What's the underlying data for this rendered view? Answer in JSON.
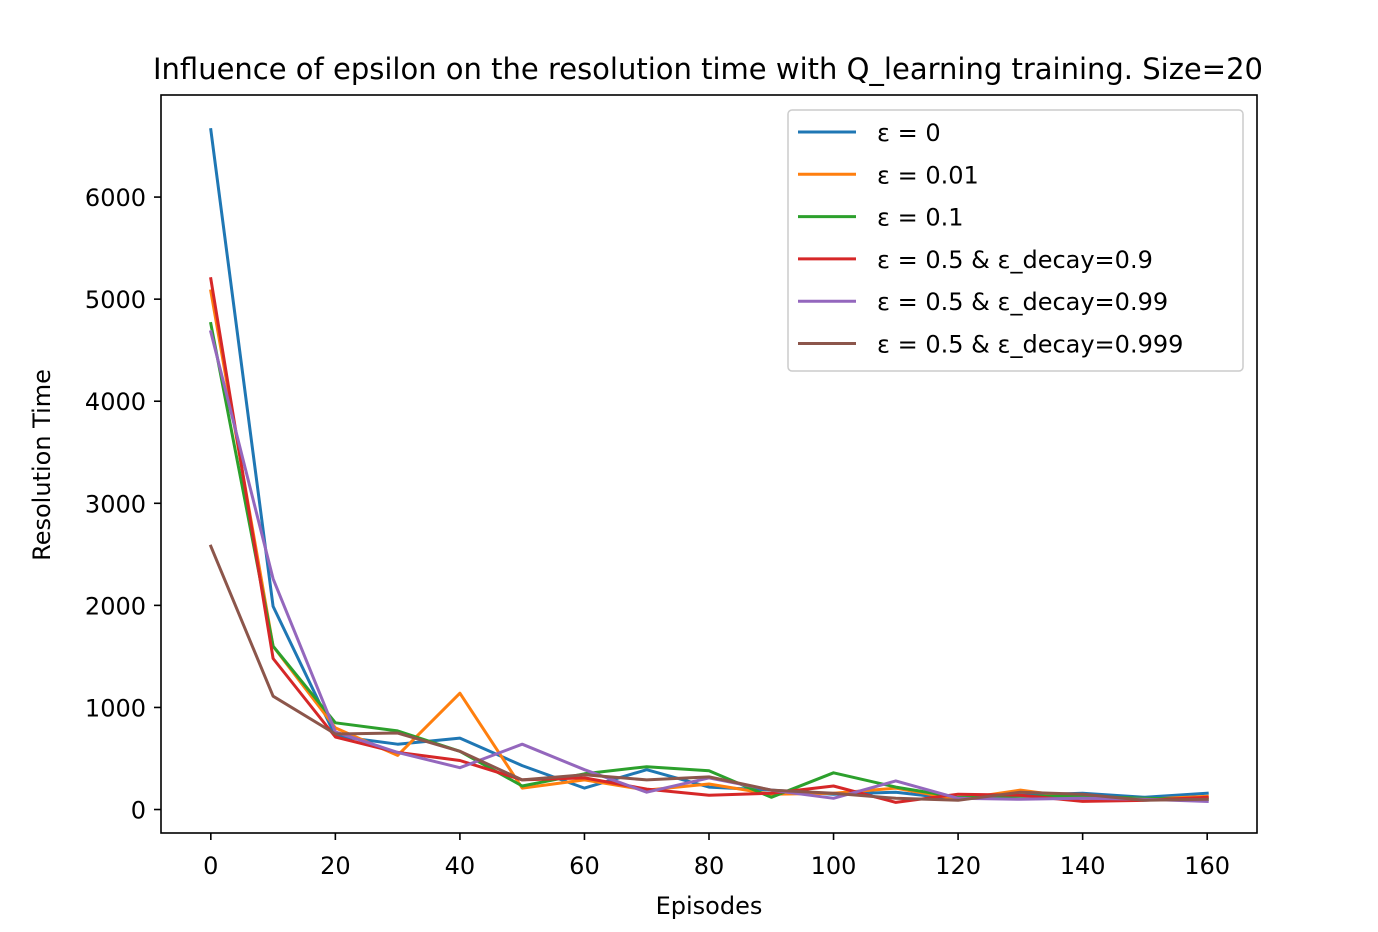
{
  "chart_data": {
    "type": "line",
    "title": "Influence of epsilon on the resolution time with Q_learning training. Size=20",
    "xlabel": "Episodes",
    "ylabel": "Resolution Time",
    "xlim": [
      -8,
      168
    ],
    "ylim": [
      -230,
      7000
    ],
    "xticks": [
      0,
      20,
      40,
      60,
      80,
      100,
      120,
      140,
      160
    ],
    "yticks": [
      0,
      1000,
      2000,
      3000,
      4000,
      5000,
      6000
    ],
    "grid": false,
    "legend_position": "upper-right",
    "x": [
      0,
      10,
      20,
      30,
      40,
      50,
      60,
      70,
      80,
      90,
      100,
      110,
      120,
      130,
      140,
      150,
      160
    ],
    "series": [
      {
        "name": "ε = 0",
        "color": "#1f77b4",
        "values": [
          6660,
          1990,
          720,
          640,
          700,
          430,
          210,
          390,
          220,
          190,
          150,
          170,
          100,
          140,
          160,
          120,
          160
        ]
      },
      {
        "name": "ε = 0.01",
        "color": "#ff7f0e",
        "values": [
          5080,
          1600,
          800,
          530,
          1140,
          210,
          290,
          190,
          250,
          150,
          160,
          210,
          100,
          190,
          110,
          100,
          130
        ]
      },
      {
        "name": "ε = 0.1",
        "color": "#2ca02c",
        "values": [
          4760,
          1600,
          850,
          770,
          570,
          230,
          350,
          420,
          380,
          120,
          360,
          220,
          120,
          130,
          130,
          110,
          100
        ]
      },
      {
        "name": "ε = 0.5 & ε_decay=0.9",
        "color": "#d62728",
        "values": [
          5200,
          1480,
          710,
          560,
          480,
          290,
          310,
          200,
          140,
          160,
          230,
          70,
          150,
          140,
          80,
          90,
          120
        ]
      },
      {
        "name": "ε = 0.5 & ε_decay=0.99",
        "color": "#9467bd",
        "values": [
          4680,
          2260,
          760,
          560,
          410,
          640,
          390,
          170,
          310,
          190,
          110,
          280,
          110,
          100,
          110,
          100,
          80
        ]
      },
      {
        "name": "ε = 0.5 & ε_decay=0.999",
        "color": "#8c564b",
        "values": [
          2580,
          1110,
          740,
          750,
          570,
          290,
          340,
          290,
          320,
          190,
          160,
          110,
          90,
          170,
          150,
          90,
          100
        ]
      }
    ]
  }
}
